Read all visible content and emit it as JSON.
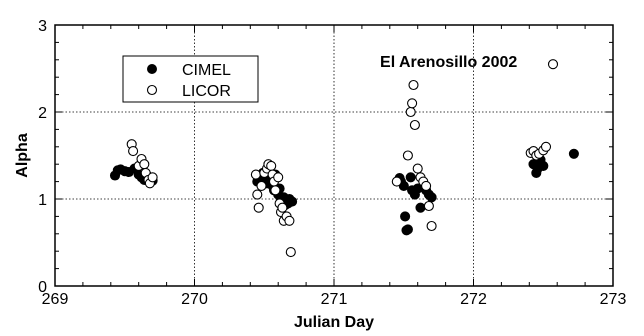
{
  "chart_data": {
    "type": "scatter",
    "title": "",
    "annotation": "El Arenosillo 2002",
    "xlabel": "Julian Day",
    "ylabel": "Alpha",
    "xlim": [
      269,
      273
    ],
    "ylim": [
      0,
      3
    ],
    "xticks": [
      269,
      270,
      271,
      272,
      273
    ],
    "yticks": [
      0,
      1,
      2,
      3
    ],
    "xtick_labels": [
      "269",
      "270",
      "271",
      "272",
      "273"
    ],
    "ytick_labels": [
      "0",
      "1",
      "2",
      "3"
    ],
    "grid": true,
    "legend_position": "top-left",
    "series": [
      {
        "name": "CIMEL",
        "marker": "filled-circle",
        "color": "#000000",
        "points": [
          [
            269.43,
            1.27
          ],
          [
            269.45,
            1.33
          ],
          [
            269.47,
            1.34
          ],
          [
            269.5,
            1.32
          ],
          [
            269.53,
            1.31
          ],
          [
            269.57,
            1.35
          ],
          [
            269.6,
            1.28
          ],
          [
            269.62,
            1.25
          ],
          [
            269.64,
            1.22
          ],
          [
            269.66,
            1.27
          ],
          [
            269.68,
            1.24
          ],
          [
            269.7,
            1.21
          ],
          [
            270.45,
            1.2
          ],
          [
            270.47,
            1.25
          ],
          [
            270.49,
            1.3
          ],
          [
            270.5,
            1.22
          ],
          [
            270.52,
            1.18
          ],
          [
            270.53,
            1.32
          ],
          [
            270.55,
            1.24
          ],
          [
            270.56,
            1.15
          ],
          [
            270.57,
            1.1
          ],
          [
            270.58,
            1.28
          ],
          [
            270.6,
            1.05
          ],
          [
            270.61,
            1.12
          ],
          [
            270.62,
            1.0
          ],
          [
            270.63,
            0.97
          ],
          [
            270.64,
            1.02
          ],
          [
            270.65,
            0.93
          ],
          [
            270.66,
            0.98
          ],
          [
            270.67,
            0.95
          ],
          [
            270.68,
            1.0
          ],
          [
            270.7,
            0.97
          ],
          [
            271.47,
            1.24
          ],
          [
            271.48,
            1.2
          ],
          [
            271.5,
            1.15
          ],
          [
            271.51,
            0.8
          ],
          [
            271.52,
            0.64
          ],
          [
            271.53,
            0.65
          ],
          [
            271.55,
            1.25
          ],
          [
            271.56,
            1.1
          ],
          [
            271.58,
            1.05
          ],
          [
            271.6,
            1.12
          ],
          [
            271.62,
            0.9
          ],
          [
            271.64,
            1.15
          ],
          [
            271.66,
            1.1
          ],
          [
            271.68,
            1.05
          ],
          [
            271.7,
            1.02
          ],
          [
            272.43,
            1.4
          ],
          [
            272.45,
            1.3
          ],
          [
            272.46,
            1.35
          ],
          [
            272.48,
            1.45
          ],
          [
            272.5,
            1.38
          ],
          [
            272.72,
            1.52
          ]
        ]
      },
      {
        "name": "LICOR",
        "marker": "open-circle",
        "color": "#000000",
        "points": [
          [
            269.55,
            1.63
          ],
          [
            269.56,
            1.55
          ],
          [
            269.6,
            1.38
          ],
          [
            269.62,
            1.46
          ],
          [
            269.64,
            1.4
          ],
          [
            269.65,
            1.3
          ],
          [
            269.67,
            1.22
          ],
          [
            269.68,
            1.18
          ],
          [
            269.7,
            1.25
          ],
          [
            270.44,
            1.28
          ],
          [
            270.45,
            1.05
          ],
          [
            270.46,
            0.9
          ],
          [
            270.48,
            1.15
          ],
          [
            270.5,
            1.3
          ],
          [
            270.52,
            1.35
          ],
          [
            270.53,
            1.4
          ],
          [
            270.55,
            1.38
          ],
          [
            270.56,
            1.28
          ],
          [
            270.57,
            1.2
          ],
          [
            270.58,
            1.1
          ],
          [
            270.6,
            1.25
          ],
          [
            270.61,
            0.95
          ],
          [
            270.62,
            0.85
          ],
          [
            270.63,
            0.9
          ],
          [
            270.64,
            0.75
          ],
          [
            270.66,
            0.8
          ],
          [
            270.68,
            0.75
          ],
          [
            270.69,
            0.39
          ],
          [
            271.45,
            1.2
          ],
          [
            271.53,
            1.5
          ],
          [
            271.55,
            2.0
          ],
          [
            271.56,
            2.1
          ],
          [
            271.57,
            2.31
          ],
          [
            271.58,
            1.85
          ],
          [
            271.6,
            1.35
          ],
          [
            271.62,
            1.25
          ],
          [
            271.64,
            1.2
          ],
          [
            271.66,
            1.15
          ],
          [
            271.68,
            0.92
          ],
          [
            271.7,
            0.69
          ],
          [
            272.41,
            1.53
          ],
          [
            272.43,
            1.55
          ],
          [
            272.45,
            1.5
          ],
          [
            272.47,
            1.52
          ],
          [
            272.5,
            1.56
          ],
          [
            272.52,
            1.6
          ],
          [
            272.57,
            2.55
          ]
        ]
      }
    ]
  }
}
